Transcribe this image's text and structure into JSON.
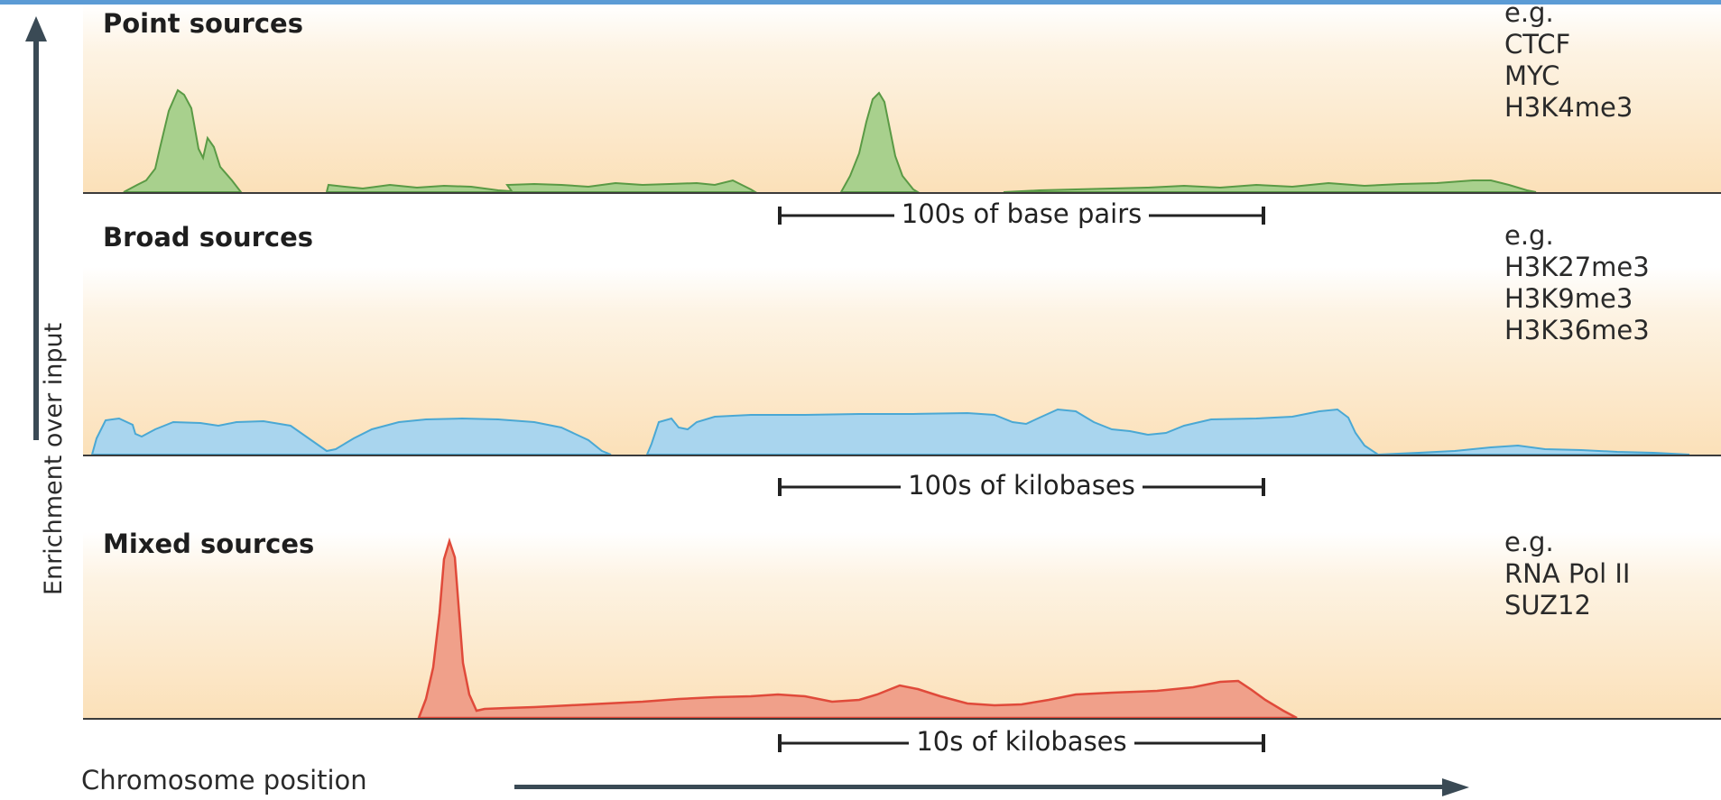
{
  "y_axis": {
    "label": "Enrichment over input",
    "arrow_color": "#3a4a55"
  },
  "x_axis": {
    "label": "Chromosome position",
    "arrow_color": "#3a4a55"
  },
  "panels": [
    {
      "title": "Point sources",
      "examples_heading": "e.g.",
      "examples": [
        "CTCF",
        "MYC",
        "H3K4me3"
      ],
      "scale_label": "100s of base pairs",
      "fill_color": "#a8d08d",
      "stroke_color": "#5a9a45"
    },
    {
      "title": "Broad sources",
      "examples_heading": "e.g.",
      "examples": [
        "H3K27me3",
        "H3K9me3",
        "H3K36me3"
      ],
      "scale_label": "100s of kilobases",
      "fill_color": "#a9d5ee",
      "stroke_color": "#4aa8d4"
    },
    {
      "title": "Mixed sources",
      "examples_heading": "e.g.",
      "examples": [
        "RNA Pol II",
        "SUZ12"
      ],
      "scale_label": "10s of kilobases",
      "fill_color": "#f0a08a",
      "stroke_color": "#e04a3a"
    }
  ]
}
